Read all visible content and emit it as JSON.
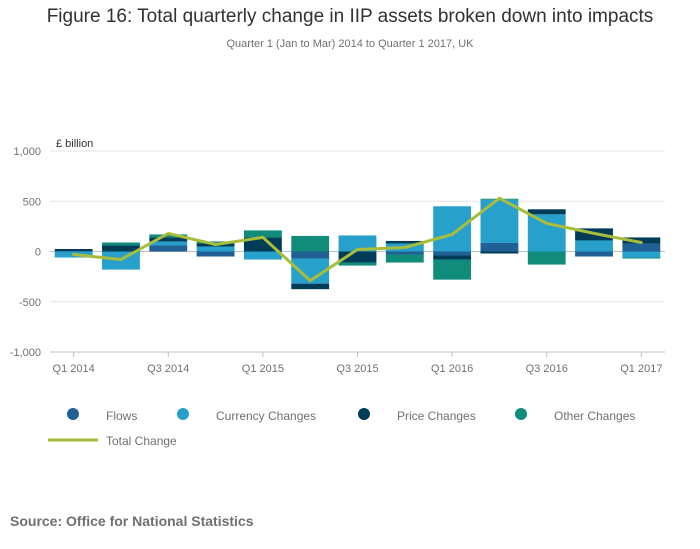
{
  "title": "Figure 16: Total quarterly change in IIP assets broken down into impacts",
  "subtitle": "Quarter 1 (Jan to Mar) 2014 to Quarter 1 2017, UK",
  "source": "Source: Office for National Statistics",
  "colors": {
    "flows": "#206095",
    "currency": "#27a0cc",
    "price": "#003c57",
    "other": "#118c7b",
    "total": "#a8bd3a",
    "grid": "#e6e6e6",
    "axis": "#bebebe"
  },
  "chart_data": {
    "type": "bar",
    "stacked": true,
    "unit_label": "£ billion",
    "ylim": [
      -1000,
      1000
    ],
    "yticks": [
      -1000,
      -500,
      0,
      500,
      1000
    ],
    "ytick_labels": [
      "-1,000",
      "-500",
      "0",
      "500",
      "1,000"
    ],
    "categories": [
      "Q1 2014",
      "Q2 2014",
      "Q3 2014",
      "Q4 2014",
      "Q1 2015",
      "Q2 2015",
      "Q3 2015",
      "Q4 2015",
      "Q1 2016",
      "Q2 2016",
      "Q3 2016",
      "Q4 2016",
      "Q1 2017"
    ],
    "xtick_labels": [
      "Q1 2014",
      "",
      "Q3 2014",
      "",
      "Q1 2015",
      "",
      "Q3 2015",
      "",
      "Q1 2016",
      "",
      "Q3 2016",
      "",
      "Q1 2017"
    ],
    "series": [
      {
        "name": "Flows",
        "key": "flows",
        "values": [
          5,
          0,
          60,
          -50,
          0,
          -70,
          0,
          -30,
          -40,
          85,
          0,
          -50,
          80
        ]
      },
      {
        "name": "Currency Changes",
        "key": "currency",
        "values": [
          -60,
          -180,
          40,
          50,
          -80,
          -250,
          160,
          80,
          450,
          430,
          370,
          110,
          -60
        ]
      },
      {
        "name": "Price Changes",
        "key": "price",
        "values": [
          20,
          60,
          40,
          30,
          140,
          -55,
          -110,
          25,
          -40,
          -20,
          50,
          120,
          60
        ]
      },
      {
        "name": "Other Changes",
        "key": "other",
        "values": [
          0,
          30,
          30,
          20,
          70,
          155,
          -30,
          -80,
          -200,
          10,
          -130,
          0,
          -10
        ]
      }
    ],
    "line": {
      "name": "Total Change",
      "key": "total",
      "values": [
        -30,
        -80,
        180,
        70,
        140,
        -290,
        20,
        40,
        170,
        530,
        280,
        180,
        90
      ]
    },
    "legend_position": "bottom"
  }
}
